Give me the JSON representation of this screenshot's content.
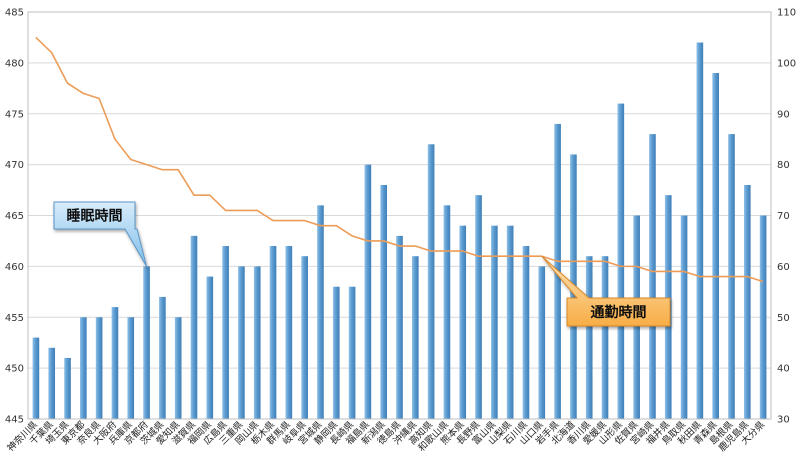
{
  "chart_data": {
    "type": "bar",
    "categories": [
      "神奈川県",
      "千葉県",
      "埼玉県",
      "東京都",
      "奈良県",
      "大阪府",
      "兵庫県",
      "京都府",
      "茨城県",
      "愛知県",
      "滋賀県",
      "福岡県",
      "広島県",
      "三重県",
      "岡山県",
      "栃木県",
      "群馬県",
      "岐阜県",
      "宮城県",
      "静岡県",
      "長崎県",
      "福島県",
      "新潟県",
      "徳島県",
      "沖縄県",
      "高知県",
      "和歌山県",
      "熊本県",
      "長野県",
      "富山県",
      "山梨県",
      "石川県",
      "山口県",
      "岩手県",
      "北海道",
      "香川県",
      "愛媛県",
      "山形県",
      "佐賀県",
      "宮崎県",
      "福井県",
      "鳥取県",
      "秋田県",
      "青森県",
      "島根県",
      "鹿児島県",
      "大分県"
    ],
    "series": [
      {
        "name": "睡眠時間",
        "kind": "bar",
        "axis": "left",
        "color": "#5b9bd0",
        "values": [
          453,
          452,
          451,
          455,
          455,
          456,
          455,
          460,
          457,
          455,
          463,
          459,
          462,
          460,
          460,
          462,
          462,
          461,
          466,
          458,
          458,
          470,
          468,
          463,
          461,
          472,
          466,
          464,
          467,
          464,
          464,
          462,
          460,
          474,
          471,
          461,
          461,
          476,
          465,
          473,
          467,
          465,
          482,
          479,
          473,
          468,
          465
        ]
      },
      {
        "name": "通勤時間",
        "kind": "line",
        "axis": "right",
        "color": "#ed9c58",
        "values": [
          105,
          102,
          96,
          94,
          93,
          85,
          81,
          80,
          79,
          79,
          74,
          74,
          71,
          71,
          71,
          69,
          69,
          69,
          68,
          68,
          66,
          65,
          65,
          64,
          64,
          63,
          63,
          63,
          62,
          62,
          62,
          62,
          62,
          61,
          61,
          61,
          61,
          60,
          60,
          59,
          59,
          59,
          58,
          58,
          58,
          58,
          57
        ]
      }
    ],
    "y_left": {
      "min": 445,
      "max": 485,
      "ticks": [
        445,
        450,
        455,
        460,
        465,
        470,
        475,
        480,
        485
      ]
    },
    "y_right": {
      "min": 30,
      "max": 110,
      "ticks": [
        30,
        40,
        50,
        60,
        70,
        80,
        90,
        100,
        110
      ]
    },
    "grid": true,
    "legend": "none",
    "annotations": [
      {
        "text": "睡眠時間",
        "style": "blue-callout",
        "points_to": "京都府"
      },
      {
        "text": "通勤時間",
        "style": "orange-callout",
        "points_to": "山口県"
      }
    ]
  }
}
